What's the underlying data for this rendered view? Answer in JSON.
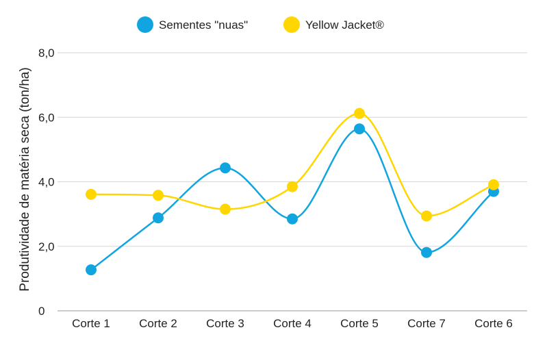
{
  "chart_data": {
    "type": "line",
    "title": "",
    "xlabel": "",
    "ylabel": "Produtividade de matéria seca (ton/ha)",
    "categories": [
      "Corte 1",
      "Corte 2",
      "Corte 3",
      "Corte 4",
      "Corte 5",
      "Corte 7",
      "Corte 6"
    ],
    "ylim": [
      0,
      8
    ],
    "y_ticks": [
      0,
      2,
      4,
      6,
      8
    ],
    "y_tick_labels": [
      "0",
      "2,0",
      "4,0",
      "6,0",
      "8,0"
    ],
    "grid": true,
    "smooth": true,
    "legend_position": "top-center",
    "series": [
      {
        "name": "Sementes \"nuas\"",
        "color": "#11A5E0",
        "values": [
          1.27,
          2.88,
          4.43,
          2.85,
          5.64,
          1.81,
          3.7
        ]
      },
      {
        "name": "Yellow Jacket®",
        "color": "#FFD600",
        "values": [
          3.61,
          3.58,
          3.15,
          3.85,
          6.12,
          2.94,
          3.91
        ]
      }
    ]
  }
}
